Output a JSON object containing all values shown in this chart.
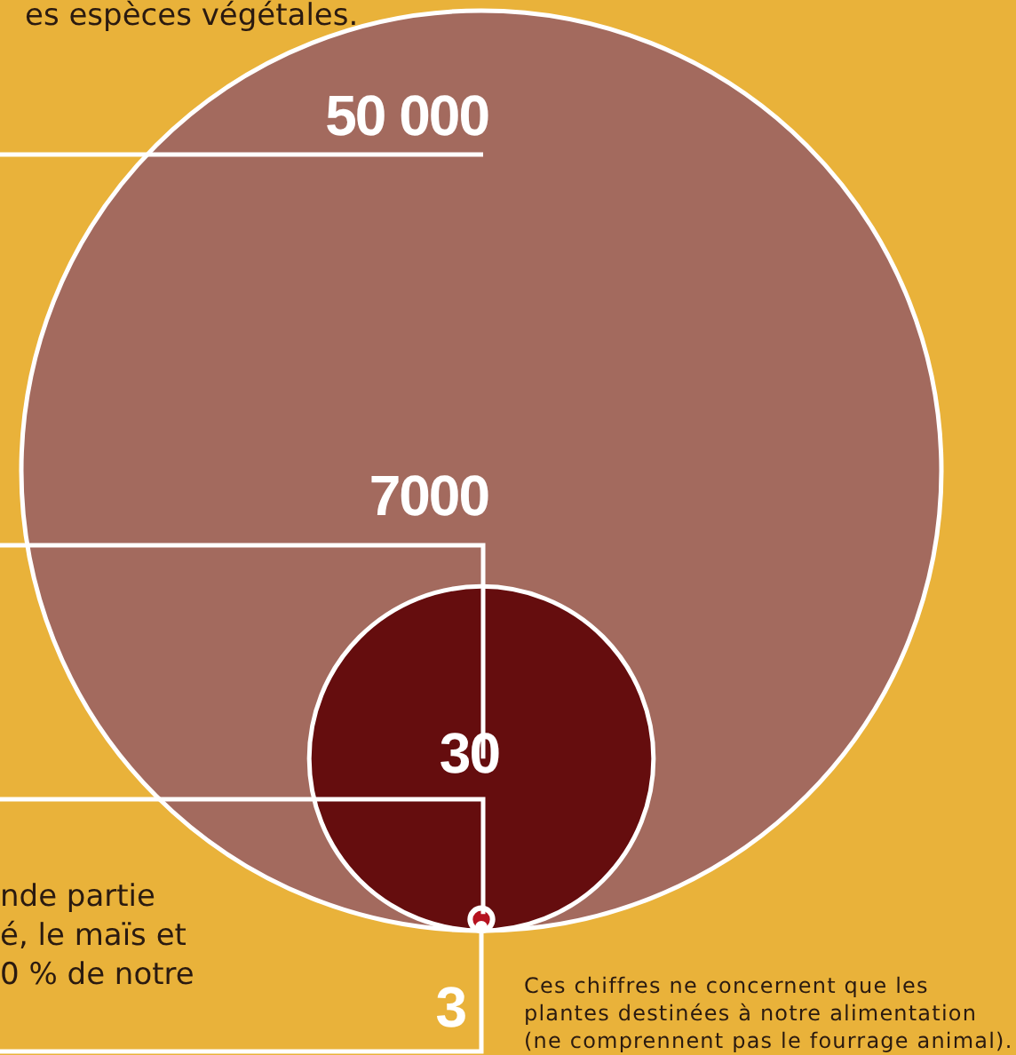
{
  "chart_data": {
    "type": "other",
    "values": [
      50000,
      7000,
      30,
      3
    ],
    "value_labels": [
      "50 000",
      "7000",
      "30",
      "3"
    ],
    "colors": [
      "#a36a5e",
      "#650d0e",
      "#b5121f",
      "#ffffff"
    ],
    "annotations": [
      "es espèces végétales.",
      "nde partie\né, le maïs et\n0 % de notre",
      "Ces chiffres ne concernent que les\nplantes destinées à notre alimentation\n(ne comprennent pas le fourrage animal)."
    ]
  }
}
